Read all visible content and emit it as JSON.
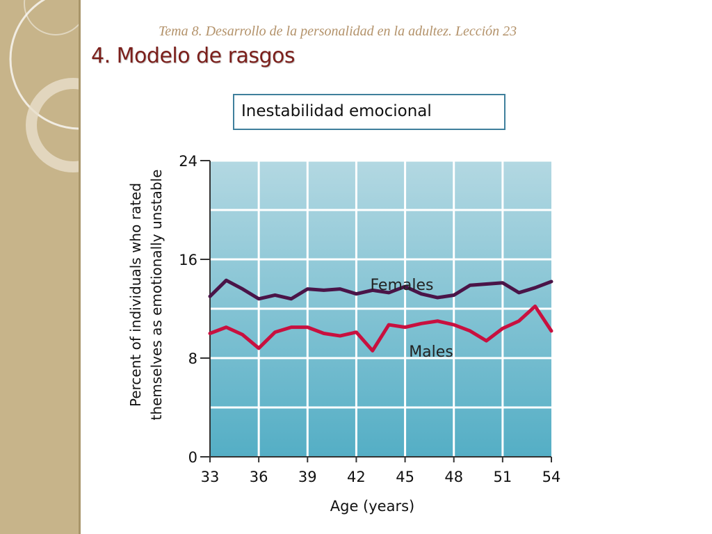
{
  "header": {
    "subtitle": "Tema 8. Desarrollo de la personalidad en la adultez.  Lección 23",
    "title": "4. Modelo de rasgos"
  },
  "caption": "Inestabilidad emocional",
  "colors": {
    "sidebar": "#c7b48a",
    "subtitle": "#b3926a",
    "title": "#7b1f1b",
    "caption_border": "#3f7f9c",
    "plot_top": "#b3d8e2",
    "plot_bottom": "#54aec5",
    "females": "#4a1448",
    "males": "#c8103f"
  },
  "chart_data": {
    "type": "line",
    "title": "",
    "xlabel": "Age (years)",
    "ylabel_lines": [
      "Percent of individuals who rated",
      "themselves as emotionally unstable"
    ],
    "xlim": [
      33,
      54
    ],
    "ylim": [
      0,
      24
    ],
    "xticks": [
      33,
      36,
      39,
      42,
      45,
      48,
      51,
      54
    ],
    "yticks": [
      0,
      8,
      16,
      24
    ],
    "grid": true,
    "x": [
      33,
      34,
      35,
      36,
      37,
      38,
      39,
      40,
      41,
      42,
      43,
      44,
      45,
      46,
      47,
      48,
      49,
      50,
      51,
      52,
      53,
      54
    ],
    "series": [
      {
        "name": "Females",
        "values": [
          13.0,
          14.3,
          13.6,
          12.8,
          13.1,
          12.8,
          13.6,
          13.5,
          13.6,
          13.2,
          13.5,
          13.3,
          13.8,
          13.2,
          12.9,
          13.1,
          13.9,
          14.0,
          14.1,
          13.3,
          13.7,
          14.2
        ]
      },
      {
        "name": "Males",
        "values": [
          10.0,
          10.5,
          9.9,
          8.8,
          10.1,
          10.5,
          10.5,
          10.0,
          9.8,
          10.1,
          8.6,
          10.7,
          10.5,
          10.8,
          11.0,
          10.7,
          10.2,
          9.4,
          10.4,
          11.0,
          12.2,
          10.2
        ]
      }
    ]
  }
}
